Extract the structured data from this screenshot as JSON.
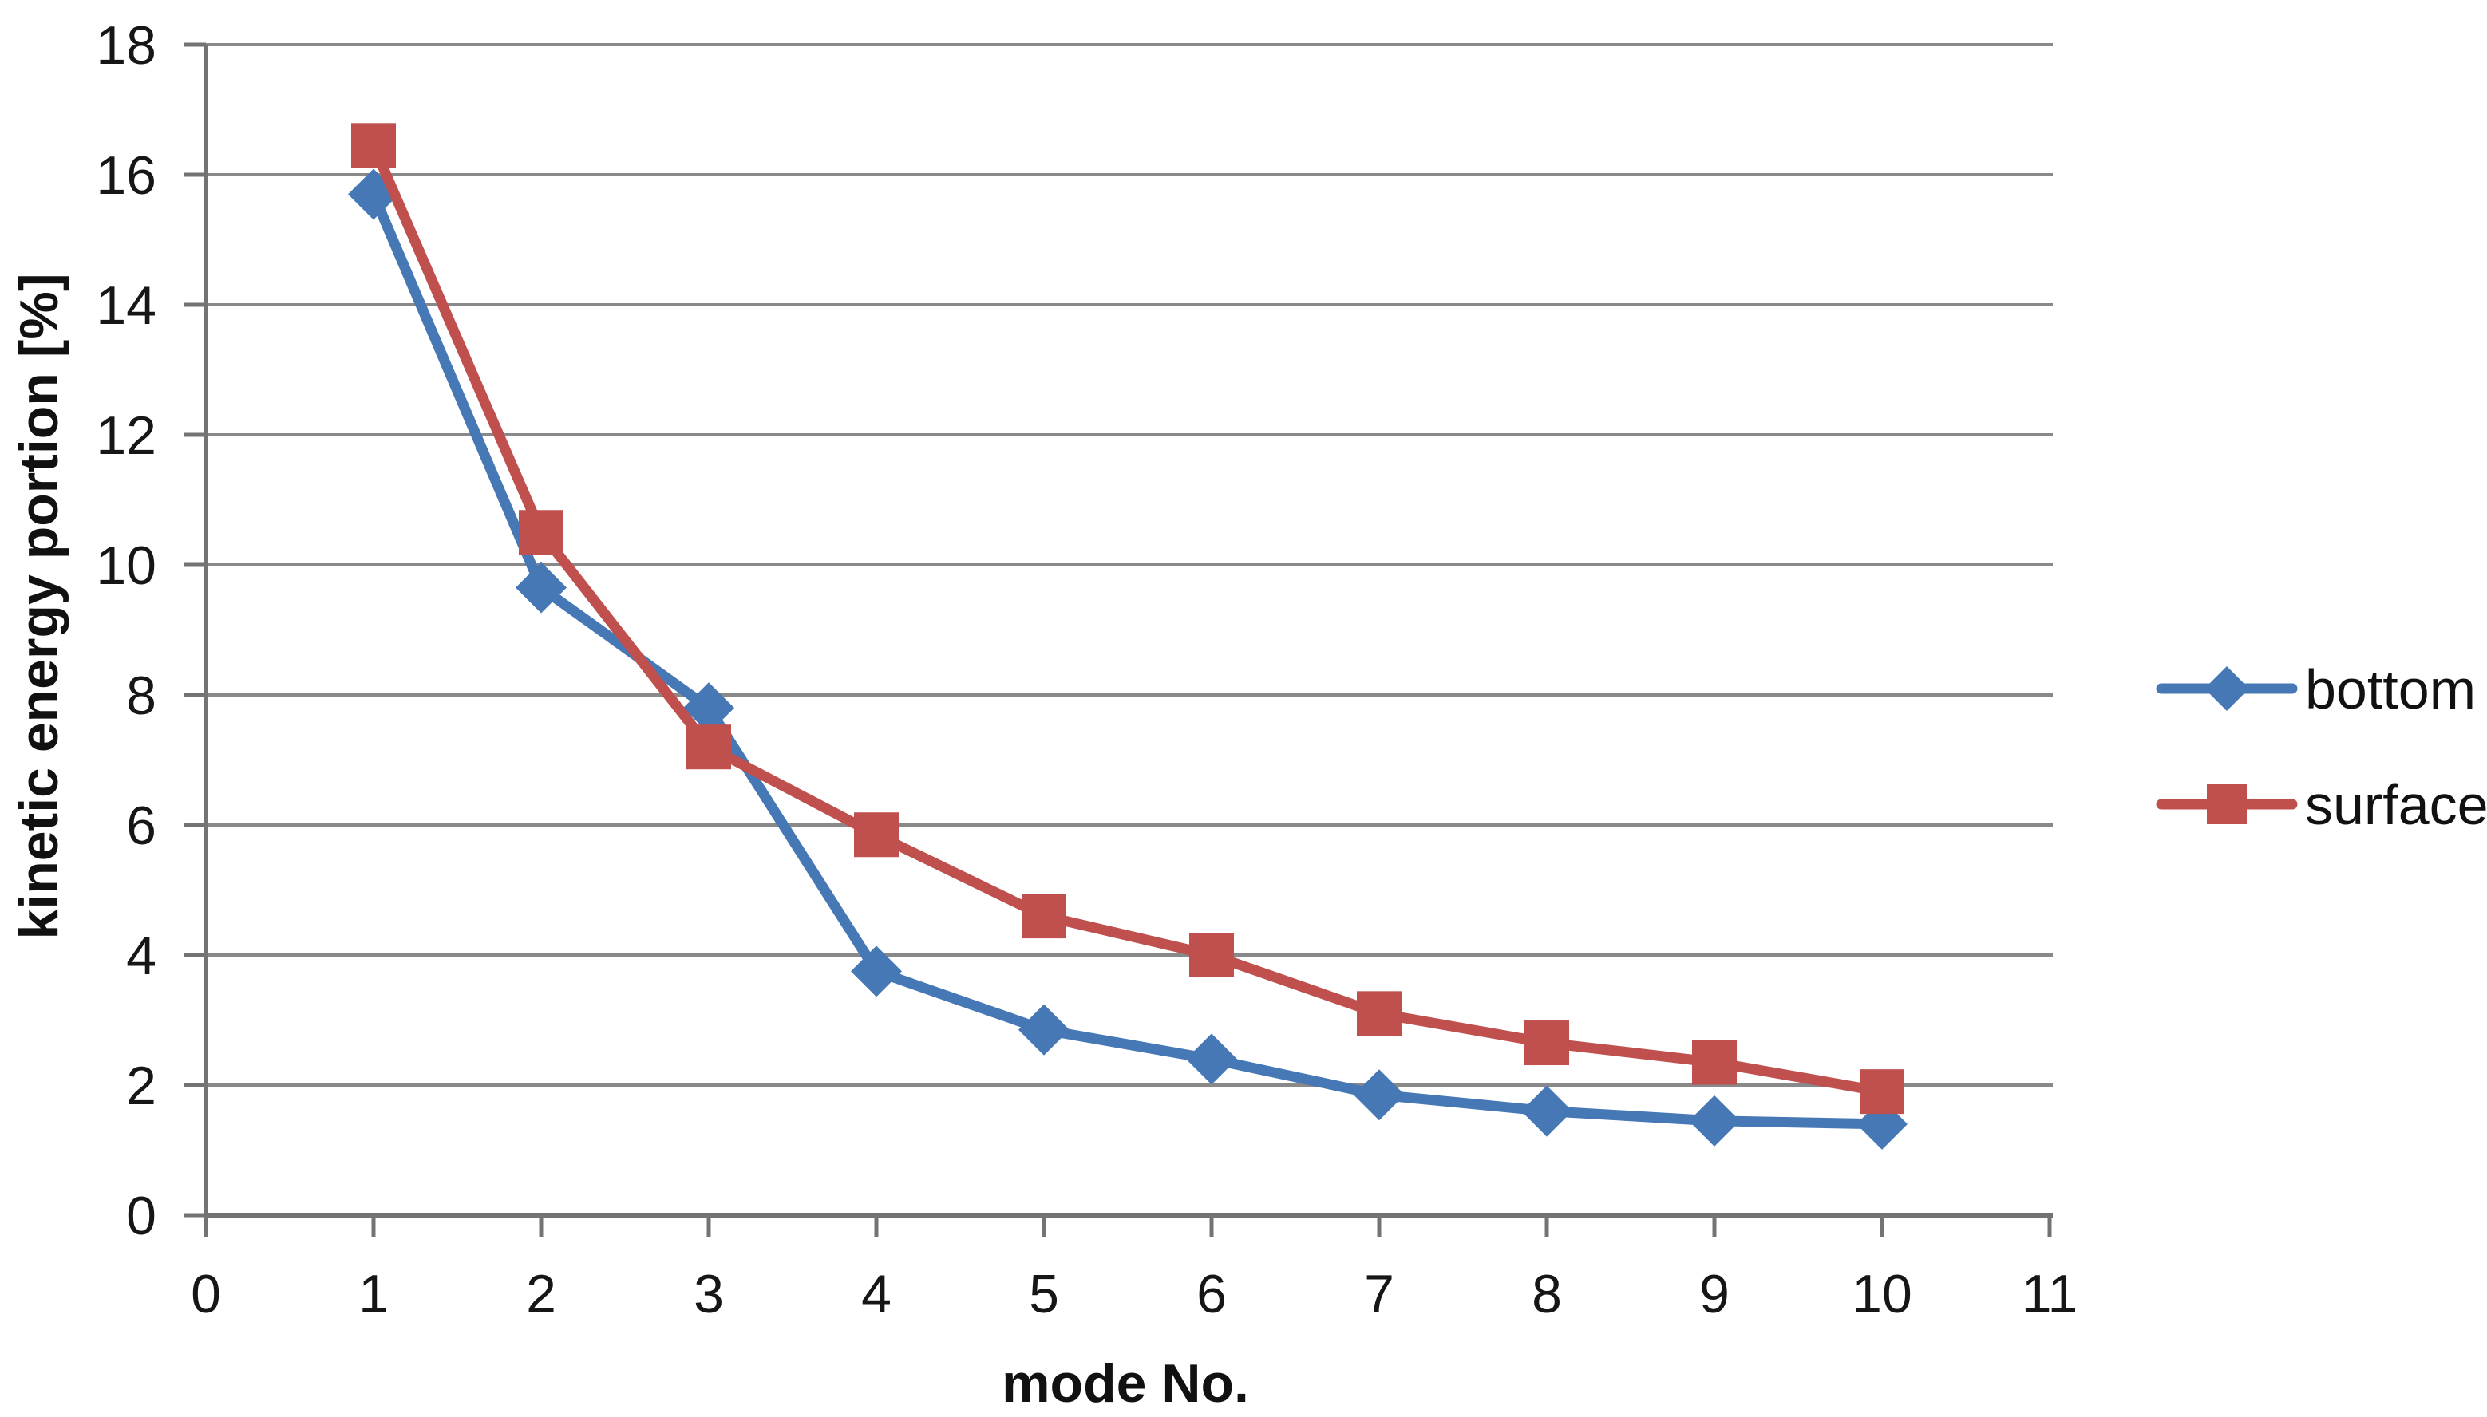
{
  "chart_data": {
    "type": "line",
    "title": "",
    "xlabel": "mode No.",
    "ylabel": "kinetic energy portion [%]",
    "x": [
      1,
      2,
      3,
      4,
      5,
      6,
      7,
      8,
      9,
      10
    ],
    "series": [
      {
        "name": "bottom",
        "color": "#4678B6",
        "marker": "diamond",
        "values": [
          15.7,
          9.65,
          7.8,
          3.75,
          2.85,
          2.4,
          1.85,
          1.6,
          1.45,
          1.4
        ]
      },
      {
        "name": "surface",
        "color": "#C0504D",
        "marker": "square",
        "values": [
          16.45,
          10.5,
          7.2,
          5.85,
          4.6,
          4.0,
          3.1,
          2.65,
          2.35,
          1.9
        ]
      }
    ],
    "xlim": [
      0,
      11
    ],
    "ylim": [
      0,
      18
    ],
    "x_ticks": [
      0,
      1,
      2,
      3,
      4,
      5,
      6,
      7,
      8,
      9,
      10,
      11
    ],
    "x_tick_labels": [
      "0",
      "1",
      "2",
      "3",
      "4",
      "5",
      "6",
      "7",
      "8",
      "9",
      "10",
      "11"
    ],
    "y_ticks": [
      0,
      2,
      4,
      6,
      8,
      10,
      12,
      14,
      16,
      18
    ],
    "y_tick_labels": [
      "0",
      "2",
      "4",
      "6",
      "8",
      "10",
      "12",
      "14",
      "16",
      "18"
    ],
    "grid": "horizontal",
    "legend_position": "right"
  },
  "colors": {
    "background": "#FFFFFF",
    "gridline": "#898989",
    "axis": "#737373",
    "text": "#161616"
  }
}
